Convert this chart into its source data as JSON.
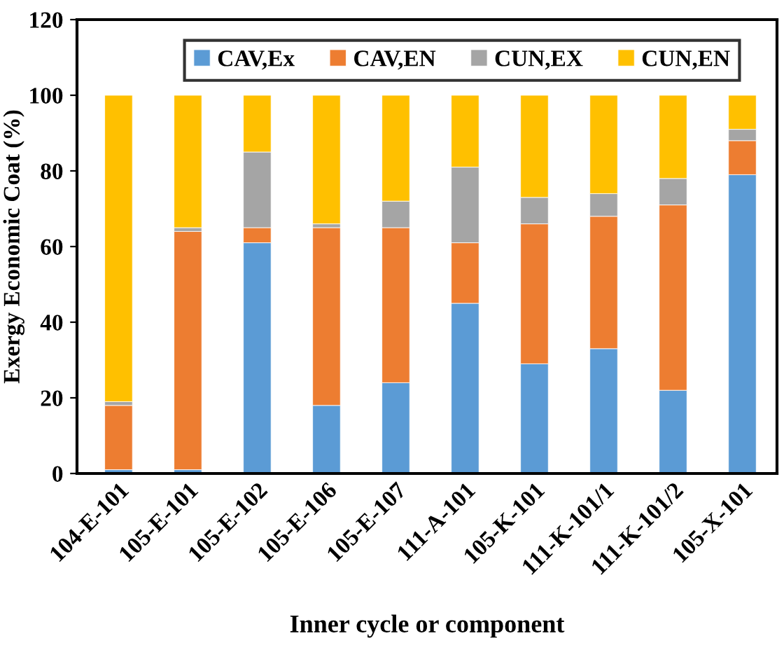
{
  "chart_data": {
    "type": "bar",
    "stacked": true,
    "xlabel": "Inner cycle or component",
    "ylabel": "Exergy Economic Coat (%)",
    "categories": [
      "104-E-101",
      "105-E-101",
      "105-E-102",
      "105-E-106",
      "105-E-107",
      "111-A-101",
      "105-K-101",
      "111-K-101/1",
      "111-K-101/2",
      "105-X-101"
    ],
    "series": [
      {
        "name": "CAV,Ex",
        "color": "#5b9bd5",
        "values": [
          1,
          1,
          61,
          18,
          24,
          45,
          29,
          33,
          22,
          79
        ]
      },
      {
        "name": "CAV,EN",
        "color": "#ed7d31",
        "values": [
          17,
          63,
          4,
          47,
          41,
          16,
          37,
          35,
          49,
          9
        ]
      },
      {
        "name": "CUN,EX",
        "color": "#a5a5a5",
        "values": [
          1,
          1,
          20,
          1,
          7,
          20,
          7,
          6,
          7,
          3
        ]
      },
      {
        "name": "CUN,EN",
        "color": "#ffc000",
        "values": [
          81,
          35,
          15,
          34,
          28,
          19,
          27,
          26,
          22,
          9
        ]
      }
    ],
    "ylim": [
      0,
      120
    ],
    "yticks": [
      0,
      20,
      40,
      60,
      80,
      100,
      120
    ],
    "grid": false,
    "legend": "top"
  }
}
